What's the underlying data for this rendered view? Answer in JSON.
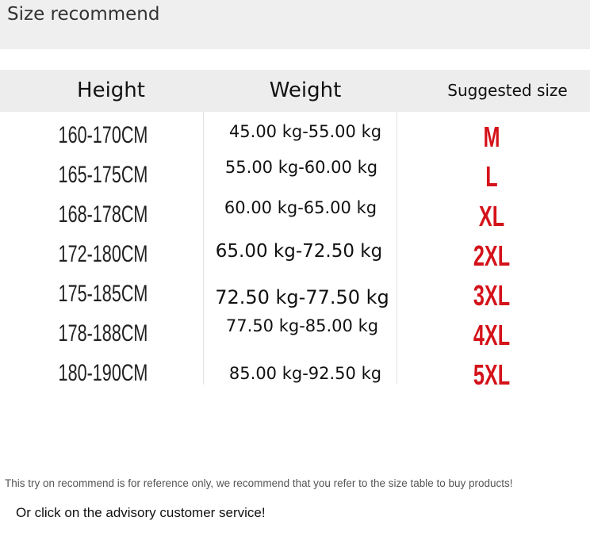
{
  "title": "Size recommend",
  "table": {
    "headers": [
      "Height",
      "Weight",
      "Suggested size"
    ],
    "rows": [
      {
        "height": "160-170CM",
        "weight": "45.00 kg-55.00 kg",
        "size": "M"
      },
      {
        "height": "165-175CM",
        "weight": "55.00 kg-60.00 kg",
        "size": "L"
      },
      {
        "height": "168-178CM",
        "weight": "60.00 kg-65.00 kg",
        "size": "XL"
      },
      {
        "height": "172-180CM",
        "weight": "65.00 kg-72.50 kg",
        "size": "2XL"
      },
      {
        "height": "175-185CM",
        "weight": "72.50 kg-77.50 kg",
        "size": "3XL"
      },
      {
        "height": "178-188CM",
        "weight": "77.50 kg-85.00 kg",
        "size": "4XL"
      },
      {
        "height": "180-190CM",
        "weight": "85.00 kg-92.50 kg",
        "size": "5XL"
      }
    ]
  },
  "notes": {
    "disclaimer": "This try on recommend is for reference only, we recommend that you refer to the size table to buy products!",
    "contact": "Or click on the advisory customer service!"
  },
  "colors": {
    "size_text": "#d4121a",
    "header_bg": "#ededed"
  }
}
